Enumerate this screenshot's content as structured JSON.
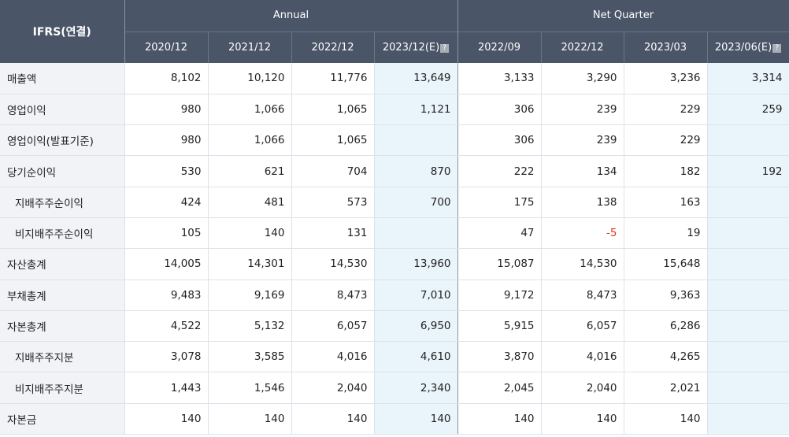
{
  "header": {
    "corner_label": "IFRS(연결)",
    "annual_label": "Annual",
    "quarter_label": "Net Quarter",
    "periods": [
      "2020/12",
      "2021/12",
      "2022/12",
      "2023/12(E)",
      "2022/09",
      "2022/12",
      "2023/03",
      "2023/06(E)"
    ],
    "estimate_icon": "info-icon",
    "estimate_icon_glyph": "?"
  },
  "rows": [
    {
      "label": "매출액",
      "sub": false,
      "values": [
        "8,102",
        "10,120",
        "11,776",
        "13,649",
        "3,133",
        "3,290",
        "3,236",
        "3,314"
      ]
    },
    {
      "label": "영업이익",
      "sub": false,
      "values": [
        "980",
        "1,066",
        "1,065",
        "1,121",
        "306",
        "239",
        "229",
        "259"
      ]
    },
    {
      "label": "영업이익(발표기준)",
      "sub": false,
      "values": [
        "980",
        "1,066",
        "1,065",
        "",
        "306",
        "239",
        "229",
        ""
      ]
    },
    {
      "label": "당기순이익",
      "sub": false,
      "values": [
        "530",
        "621",
        "704",
        "870",
        "222",
        "134",
        "182",
        "192"
      ]
    },
    {
      "label": "지배주주순이익",
      "sub": true,
      "values": [
        "424",
        "481",
        "573",
        "700",
        "175",
        "138",
        "163",
        ""
      ]
    },
    {
      "label": "비지배주주순이익",
      "sub": true,
      "values": [
        "105",
        "140",
        "131",
        "",
        "47",
        "-5",
        "19",
        ""
      ]
    },
    {
      "label": "자산총계",
      "sub": false,
      "values": [
        "14,005",
        "14,301",
        "14,530",
        "13,960",
        "15,087",
        "14,530",
        "15,648",
        ""
      ]
    },
    {
      "label": "부채총계",
      "sub": false,
      "values": [
        "9,483",
        "9,169",
        "8,473",
        "7,010",
        "9,172",
        "8,473",
        "9,363",
        ""
      ]
    },
    {
      "label": "자본총계",
      "sub": false,
      "values": [
        "4,522",
        "5,132",
        "6,057",
        "6,950",
        "5,915",
        "6,057",
        "6,286",
        ""
      ]
    },
    {
      "label": "지배주주지분",
      "sub": true,
      "values": [
        "3,078",
        "3,585",
        "4,016",
        "4,610",
        "3,870",
        "4,016",
        "4,265",
        ""
      ]
    },
    {
      "label": "비지배주주지분",
      "sub": true,
      "values": [
        "1,443",
        "1,546",
        "2,040",
        "2,340",
        "2,045",
        "2,040",
        "2,021",
        ""
      ]
    },
    {
      "label": "자본금",
      "sub": false,
      "values": [
        "140",
        "140",
        "140",
        "140",
        "140",
        "140",
        "140",
        ""
      ]
    }
  ],
  "colors": {
    "header_bg": "#4a5568",
    "label_bg": "#f1f3f7",
    "estimate_bg": "#eaf4fb",
    "negative_text": "#e0321e"
  }
}
